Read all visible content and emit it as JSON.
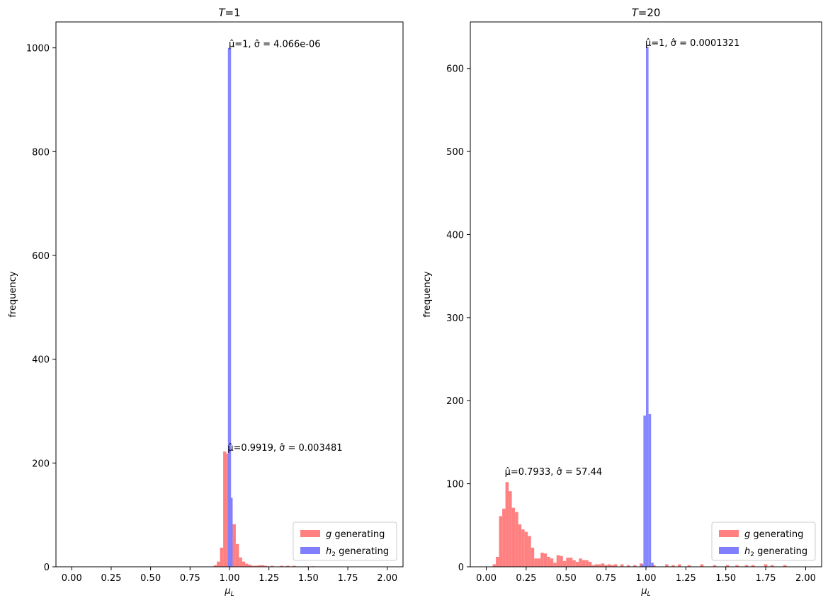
{
  "chart_data": [
    {
      "type": "bar",
      "title": "T=1",
      "xlabel": "μL",
      "ylabel": "frequency",
      "xlim": [
        -0.1,
        2.1
      ],
      "ylim": [
        0,
        1050
      ],
      "xticks": [
        0.0,
        0.25,
        0.5,
        0.75,
        1.0,
        1.25,
        1.5,
        1.75,
        2.0
      ],
      "xtick_labels": [
        "0.00",
        "0.25",
        "0.50",
        "0.75",
        "1.00",
        "1.25",
        "1.50",
        "1.75",
        "2.00"
      ],
      "yticks": [
        0,
        200,
        400,
        600,
        800,
        1000
      ],
      "ytick_labels": [
        "0",
        "200",
        "400",
        "600",
        "800",
        "1000"
      ],
      "grid": false,
      "legend_position": "bottom-right",
      "series": [
        {
          "name": "g generating",
          "color": "#ff8080",
          "bin_width": 0.02,
          "bins": [
            {
              "x": 0.9,
              "y": 3
            },
            {
              "x": 0.92,
              "y": 10
            },
            {
              "x": 0.94,
              "y": 37
            },
            {
              "x": 0.96,
              "y": 222
            },
            {
              "x": 0.98,
              "y": 218
            },
            {
              "x": 1.0,
              "y": 130
            },
            {
              "x": 1.02,
              "y": 82
            },
            {
              "x": 1.04,
              "y": 44
            },
            {
              "x": 1.06,
              "y": 18
            },
            {
              "x": 1.08,
              "y": 10
            },
            {
              "x": 1.1,
              "y": 6
            },
            {
              "x": 1.12,
              "y": 4
            },
            {
              "x": 1.14,
              "y": 2
            },
            {
              "x": 1.16,
              "y": 2
            },
            {
              "x": 1.18,
              "y": 3
            },
            {
              "x": 1.2,
              "y": 3
            },
            {
              "x": 1.22,
              "y": 2
            },
            {
              "x": 1.26,
              "y": 2
            },
            {
              "x": 1.32,
              "y": 2
            },
            {
              "x": 1.36,
              "y": 2
            },
            {
              "x": 1.4,
              "y": 2
            },
            {
              "x": 1.48,
              "y": 1
            },
            {
              "x": 1.52,
              "y": 1
            }
          ]
        },
        {
          "name": "h2 generating",
          "color": "#8080ff",
          "bin_width": 0.02,
          "bins": [
            {
              "x": 0.99,
              "y": 1000
            },
            {
              "x": 1.0,
              "y": 133
            }
          ]
        }
      ],
      "annotations": [
        {
          "label": "μ̂=1, σ̂ = 4.066e-06",
          "x": 1.0,
          "y": 1000
        },
        {
          "label": "μ̂=0.9919, σ̂ = 0.003481",
          "x": 0.9919,
          "y": 222
        }
      ]
    },
    {
      "type": "bar",
      "title": "T=20",
      "xlabel": "μL",
      "ylabel": "frequency",
      "xlim": [
        -0.1,
        2.1
      ],
      "ylim": [
        0,
        656
      ],
      "xticks": [
        0.0,
        0.25,
        0.5,
        0.75,
        1.0,
        1.25,
        1.5,
        1.75,
        2.0
      ],
      "xtick_labels": [
        "0.00",
        "0.25",
        "0.50",
        "0.75",
        "1.00",
        "1.25",
        "1.50",
        "1.75",
        "2.00"
      ],
      "yticks": [
        0,
        100,
        200,
        300,
        400,
        500,
        600
      ],
      "ytick_labels": [
        "0",
        "100",
        "200",
        "300",
        "400",
        "500",
        "600"
      ],
      "grid": false,
      "legend_position": "bottom-right",
      "series": [
        {
          "name": "g generating",
          "color": "#ff8080",
          "bin_width": 0.02,
          "bins": [
            {
              "x": 0.04,
              "y": 3
            },
            {
              "x": 0.06,
              "y": 12
            },
            {
              "x": 0.08,
              "y": 61
            },
            {
              "x": 0.1,
              "y": 70
            },
            {
              "x": 0.12,
              "y": 102
            },
            {
              "x": 0.14,
              "y": 91
            },
            {
              "x": 0.16,
              "y": 71
            },
            {
              "x": 0.18,
              "y": 66
            },
            {
              "x": 0.2,
              "y": 51
            },
            {
              "x": 0.22,
              "y": 45
            },
            {
              "x": 0.24,
              "y": 42
            },
            {
              "x": 0.26,
              "y": 37
            },
            {
              "x": 0.28,
              "y": 23
            },
            {
              "x": 0.3,
              "y": 10
            },
            {
              "x": 0.32,
              "y": 10
            },
            {
              "x": 0.34,
              "y": 17
            },
            {
              "x": 0.36,
              "y": 16
            },
            {
              "x": 0.38,
              "y": 12
            },
            {
              "x": 0.4,
              "y": 10
            },
            {
              "x": 0.42,
              "y": 5
            },
            {
              "x": 0.44,
              "y": 14
            },
            {
              "x": 0.46,
              "y": 13
            },
            {
              "x": 0.48,
              "y": 7
            },
            {
              "x": 0.5,
              "y": 11
            },
            {
              "x": 0.52,
              "y": 11
            },
            {
              "x": 0.54,
              "y": 8
            },
            {
              "x": 0.56,
              "y": 6
            },
            {
              "x": 0.58,
              "y": 10
            },
            {
              "x": 0.6,
              "y": 8
            },
            {
              "x": 0.62,
              "y": 8
            },
            {
              "x": 0.64,
              "y": 6
            },
            {
              "x": 0.66,
              "y": 2
            },
            {
              "x": 0.68,
              "y": 3
            },
            {
              "x": 0.7,
              "y": 3
            },
            {
              "x": 0.72,
              "y": 4
            },
            {
              "x": 0.74,
              "y": 2
            },
            {
              "x": 0.76,
              "y": 3
            },
            {
              "x": 0.78,
              "y": 2
            },
            {
              "x": 0.8,
              "y": 3
            },
            {
              "x": 0.84,
              "y": 3
            },
            {
              "x": 0.88,
              "y": 2
            },
            {
              "x": 0.92,
              "y": 2
            },
            {
              "x": 0.96,
              "y": 4
            },
            {
              "x": 1.04,
              "y": 2
            },
            {
              "x": 1.12,
              "y": 3
            },
            {
              "x": 1.16,
              "y": 2
            },
            {
              "x": 1.2,
              "y": 3
            },
            {
              "x": 1.26,
              "y": 2
            },
            {
              "x": 1.34,
              "y": 3
            },
            {
              "x": 1.42,
              "y": 2
            },
            {
              "x": 1.5,
              "y": 2
            },
            {
              "x": 1.56,
              "y": 2
            },
            {
              "x": 1.62,
              "y": 2
            },
            {
              "x": 1.66,
              "y": 2
            },
            {
              "x": 1.74,
              "y": 3
            },
            {
              "x": 1.78,
              "y": 2
            },
            {
              "x": 1.86,
              "y": 2
            }
          ]
        },
        {
          "name": "h2 generating",
          "color": "#8080ff",
          "bin_width": 0.016,
          "bins": [
            {
              "x": 0.968,
              "y": 3
            },
            {
              "x": 0.984,
              "y": 182
            },
            {
              "x": 1.0,
              "y": 626
            },
            {
              "x": 1.016,
              "y": 184
            },
            {
              "x": 1.032,
              "y": 5
            }
          ]
        }
      ],
      "annotations": [
        {
          "label": "μ̂=1, σ̂ = 0.0001321",
          "x": 1.0,
          "y": 626
        },
        {
          "label": "μ̂=0.7933, σ̂ = 57.44",
          "x": 0.12,
          "y": 110
        }
      ]
    }
  ]
}
